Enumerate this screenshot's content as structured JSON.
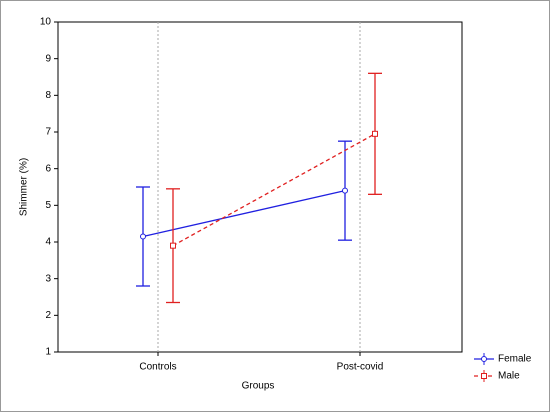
{
  "chart_data": {
    "type": "errorbar",
    "x_label": "Groups",
    "y_label": "Shimmer (%)",
    "categories": [
      "Controls",
      "Post-covid"
    ],
    "series": [
      {
        "name": "Female",
        "color": "#2020e0",
        "marker": "circle",
        "dash": false,
        "values": [
          4.15,
          5.4
        ],
        "errors": [
          1.35,
          1.35
        ]
      },
      {
        "name": "Male",
        "color": "#e02020",
        "marker": "square",
        "dash": true,
        "values": [
          3.9,
          6.95
        ],
        "errors": [
          1.55,
          1.65
        ]
      }
    ],
    "ylim": [
      1,
      10
    ],
    "yticks": [
      1,
      2,
      3,
      4,
      5,
      6,
      7,
      8,
      9,
      10
    ],
    "grid": true,
    "legend": "bottom-right"
  }
}
